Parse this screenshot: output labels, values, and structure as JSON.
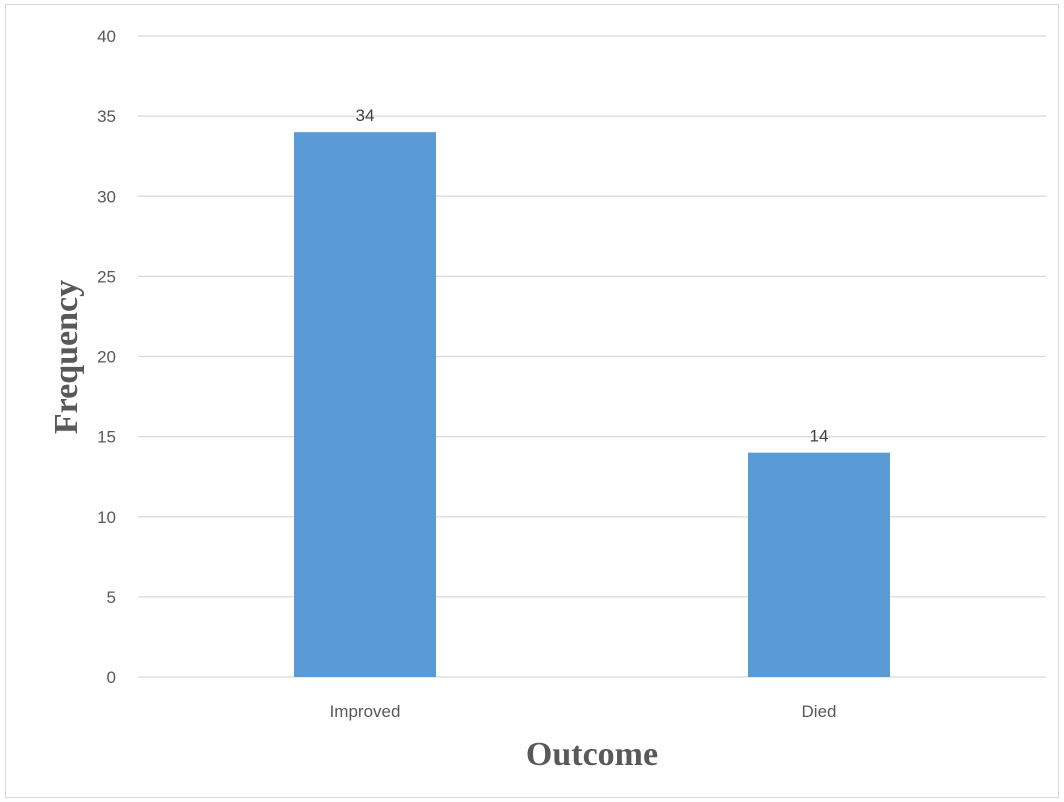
{
  "chart_data": {
    "type": "bar",
    "categories": [
      "Improved",
      "Died"
    ],
    "values": [
      34,
      14
    ],
    "data_labels": [
      "34",
      "14"
    ],
    "title": "",
    "xlabel": "Outcome",
    "ylabel": "Frequency",
    "ylim": [
      0,
      40
    ],
    "yticks": [
      0,
      5,
      10,
      15,
      20,
      25,
      30,
      35,
      40
    ],
    "ytick_labels": [
      "0",
      "5",
      "10",
      "15",
      "20",
      "25",
      "30",
      "35",
      "40"
    ],
    "grid": true,
    "legend": "none",
    "colors": {
      "bar": "#5b9bd5",
      "grid": "#d9d9d9",
      "axis": "#d9d9d9",
      "text": "#595959"
    }
  }
}
